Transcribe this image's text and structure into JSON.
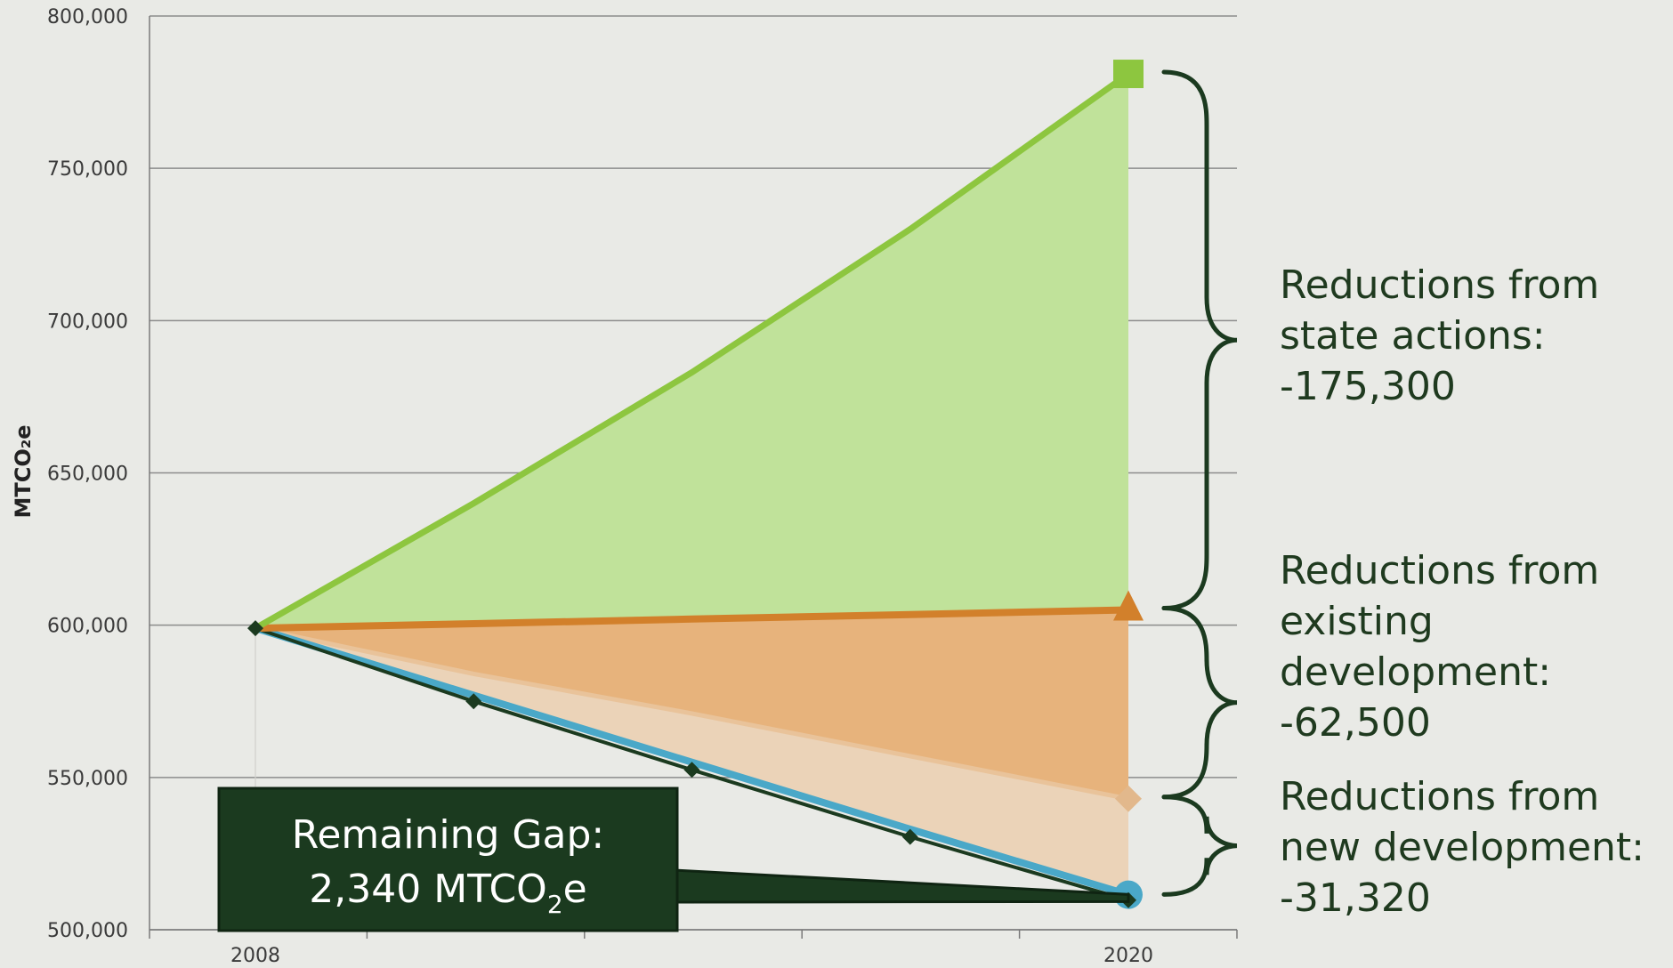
{
  "chart_data": {
    "type": "area",
    "ylabel": "MTCO₂e",
    "ylim": [
      500000,
      800000
    ],
    "yticks": [
      500000,
      550000,
      600000,
      650000,
      700000,
      750000,
      800000
    ],
    "ytick_labels": [
      "500,000",
      "550,000",
      "600,000",
      "650,000",
      "700,000",
      "750,000",
      "800,000"
    ],
    "xlim": [
      2008,
      2020
    ],
    "xtick_labels": [
      {
        "x": 2008,
        "label": "2008"
      },
      {
        "x": 2020,
        "label": "2020"
      }
    ],
    "x": [
      2008,
      2011,
      2014,
      2017,
      2020
    ],
    "series": [
      {
        "key": "green",
        "values": [
          599000,
          640000,
          683000,
          730000,
          781000
        ],
        "color": "#8dc63f",
        "fill": "#c0e29a",
        "marker": "square"
      },
      {
        "key": "orange",
        "values": [
          599000,
          600500,
          602000,
          603500,
          605000
        ],
        "color": "#d2802b",
        "fill": "#e7b37c",
        "marker": "triangle"
      },
      {
        "key": "peach",
        "values": [
          599000,
          584000,
          571000,
          557000,
          543000
        ],
        "color": "#e9c39a",
        "fill": "#ebd3b8",
        "marker": "diamond"
      },
      {
        "key": "blue",
        "values": [
          599000,
          577000,
          555000,
          533000,
          511500
        ],
        "color": "#4aa8c8",
        "marker": "circle"
      },
      {
        "key": "dark",
        "values": [
          599000,
          575000,
          552500,
          530500,
          509700
        ],
        "color": "#1b3a1f",
        "marker": "small-diamond"
      }
    ],
    "annotations": [
      {
        "key": "state",
        "lines": [
          "Reductions from",
          "state actions:",
          "-175,300"
        ],
        "from": 605000,
        "to": 781000
      },
      {
        "key": "existing",
        "lines": [
          "Reductions from",
          "existing",
          "development:",
          "-62,500"
        ],
        "from": 543000,
        "to": 605000
      },
      {
        "key": "new",
        "lines": [
          "Reductions from",
          "new development:",
          "-31,320"
        ],
        "from": 511000,
        "to": 543000
      }
    ],
    "callout": {
      "line1": "Remaining Gap:",
      "line2_prefix": "2,340 MTCO",
      "line2_sub": "2",
      "line2_suffix": "e",
      "target_x": 2020,
      "target_y": 511000
    }
  },
  "colors": {
    "grid": "#8c8c8c",
    "axis": "#7a7a7a",
    "bracket": "#1b3a1f",
    "callout_bg": "#1b3a1f",
    "callout_border": "#0f2412"
  }
}
